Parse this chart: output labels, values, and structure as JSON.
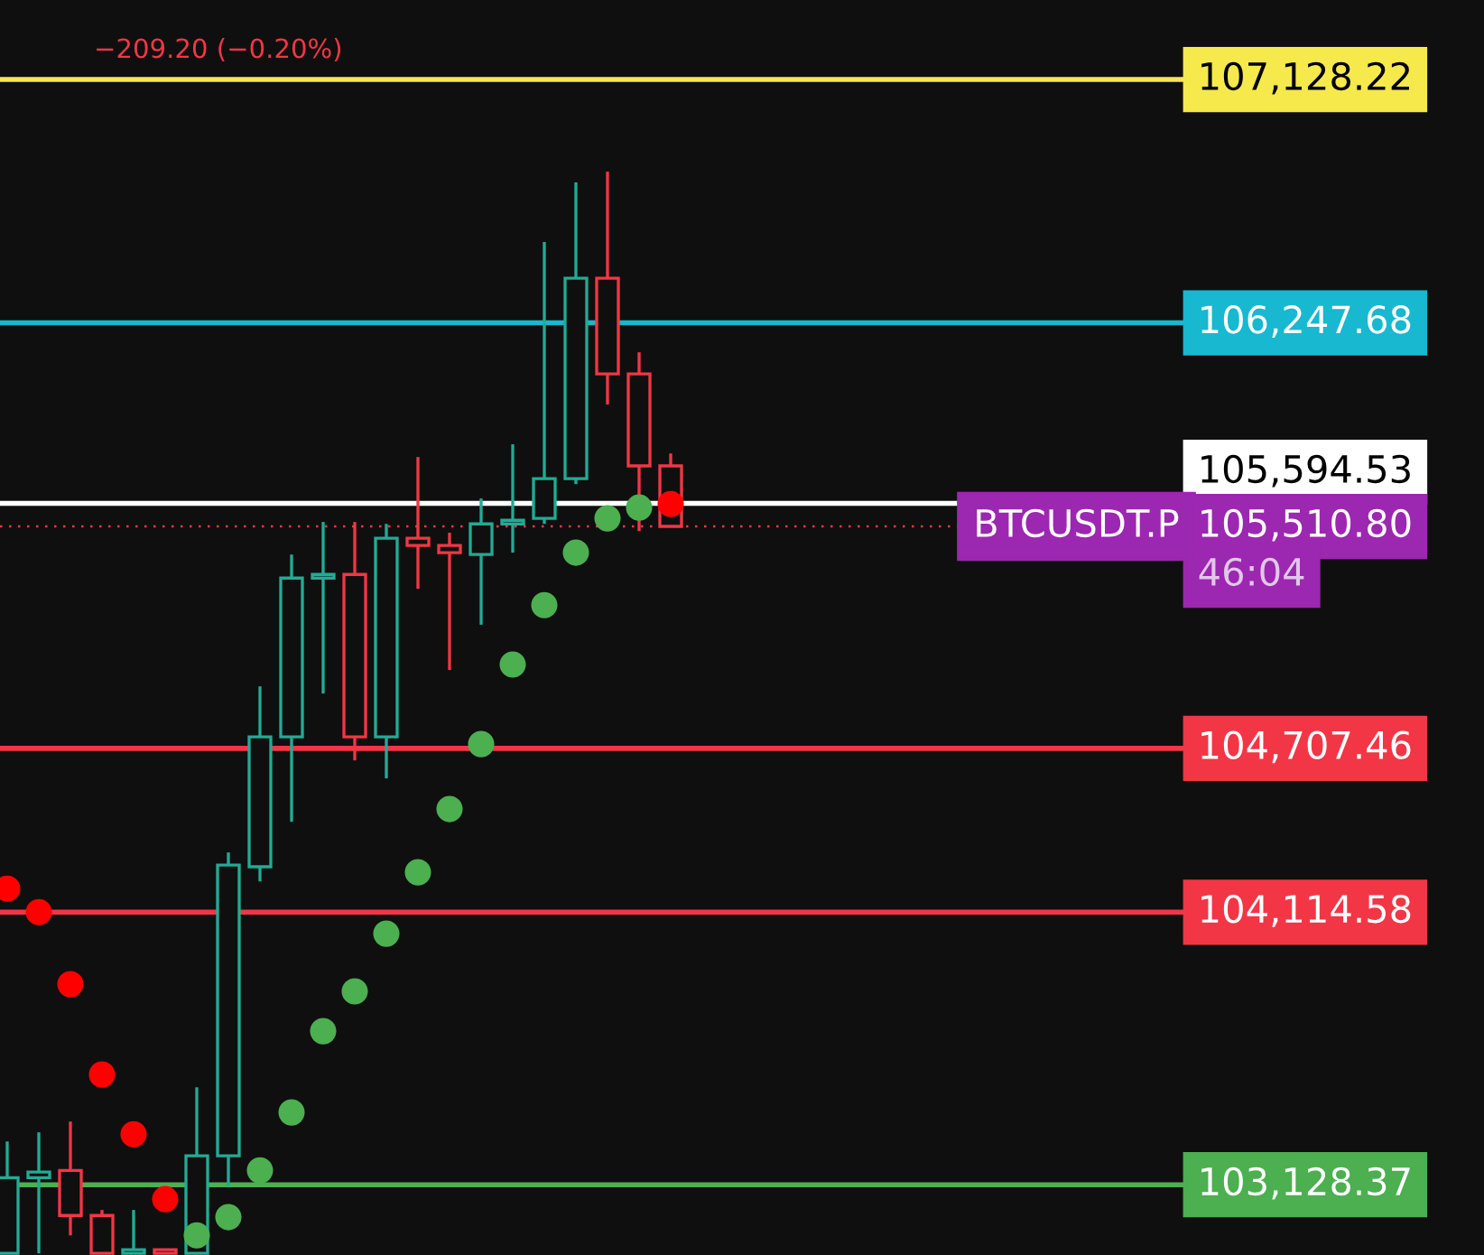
{
  "chart_data": {
    "type": "candlestick",
    "categories": [
      null,
      null,
      null,
      null,
      null,
      null,
      null,
      null,
      null,
      null,
      null,
      null,
      null,
      null,
      null,
      null,
      null,
      null,
      null,
      null,
      null,
      null
    ],
    "ohlc": [
      [
        102880,
        103285,
        102880,
        103154
      ],
      [
        103154,
        103318,
        102880,
        103174
      ],
      [
        103180,
        103357,
        102945,
        103017
      ],
      [
        103017,
        103037,
        102880,
        102880
      ],
      [
        102880,
        103037,
        102880,
        102893
      ],
      [
        102893,
        102893,
        102880,
        102880
      ],
      [
        102880,
        103481,
        102880,
        103233
      ],
      [
        103233,
        104331,
        103121,
        104285
      ],
      [
        104279,
        104932,
        104226,
        104749
      ],
      [
        104749,
        105409,
        104442,
        105324
      ],
      [
        105324,
        105527,
        104906,
        105337
      ],
      [
        105337,
        105527,
        104664,
        104749
      ],
      [
        104749,
        105520,
        104599,
        105468
      ],
      [
        105468,
        105762,
        105285,
        105442
      ],
      [
        105442,
        105488,
        104991,
        105416
      ],
      [
        105409,
        105612,
        105155,
        105520
      ],
      [
        105520,
        105808,
        105416,
        105533
      ],
      [
        105540,
        106540,
        105520,
        105684
      ],
      [
        105684,
        106756,
        105664,
        106409
      ],
      [
        106409,
        106795,
        105952,
        106063
      ],
      [
        106063,
        106141,
        105494,
        105730
      ],
      [
        105730,
        105775,
        105511,
        105511
      ]
    ],
    "colors": [
      "#22ab94",
      "#22ab94",
      "#f23645",
      "#f23645",
      "#22ab94",
      "#f23645",
      "#22ab94",
      "#22ab94",
      "#22ab94",
      "#22ab94",
      "#22ab94",
      "#f23645",
      "#22ab94",
      "#f23645",
      "#f23645",
      "#22ab94",
      "#22ab94",
      "#22ab94",
      "#22ab94",
      "#f23645",
      "#f23645",
      "#f23645"
    ],
    "series": [
      {
        "type": "scatter",
        "color": "#ff0000",
        "values": [
          104200,
          104115,
          103854,
          103527,
          103311,
          103076,
          null,
          null,
          null,
          null,
          null,
          null,
          null,
          null,
          null,
          null,
          null,
          null,
          null,
          null,
          null,
          105592
        ]
      },
      {
        "type": "scatter",
        "color": "#4caf50",
        "values": [
          null,
          null,
          null,
          null,
          null,
          null,
          102945,
          103011,
          103180,
          103390,
          103684,
          103828,
          104037,
          104259,
          104488,
          104723,
          105011,
          105226,
          105416,
          105540,
          105579,
          null
        ]
      }
    ],
    "marker": "circle",
    "ylim": [
      102874,
      107416
    ],
    "legend": false,
    "ref_lines": [
      {
        "axis": "y",
        "value": 107128.22,
        "label": "107,128.22",
        "color": "#f5e94b",
        "line_style": "solid"
      },
      {
        "axis": "y",
        "value": 106247.68,
        "label": "106,247.68",
        "color": "#17b8d0",
        "line_style": "solid"
      },
      {
        "axis": "y",
        "value": 105594.53,
        "label": "105,594.53",
        "color": "#ffffff",
        "line_style": "solid"
      },
      {
        "axis": "y",
        "value": 105510.8,
        "label": "105,510.80",
        "color": "#f23645",
        "line_style": "dotted"
      },
      {
        "axis": "y",
        "value": 104707.46,
        "label": "104,707.46",
        "color": "#f23645",
        "line_style": "solid"
      },
      {
        "axis": "y",
        "value": 104114.58,
        "label": "104,114.58",
        "color": "#f23645",
        "line_style": "solid"
      },
      {
        "axis": "y",
        "value": 103128.37,
        "label": "103,128.37",
        "color": "#4caf50",
        "line_style": "solid"
      }
    ],
    "annotations": [
      "−209.20 (−0.20%)",
      "BTCUSDT.P",
      "46:04"
    ]
  }
}
